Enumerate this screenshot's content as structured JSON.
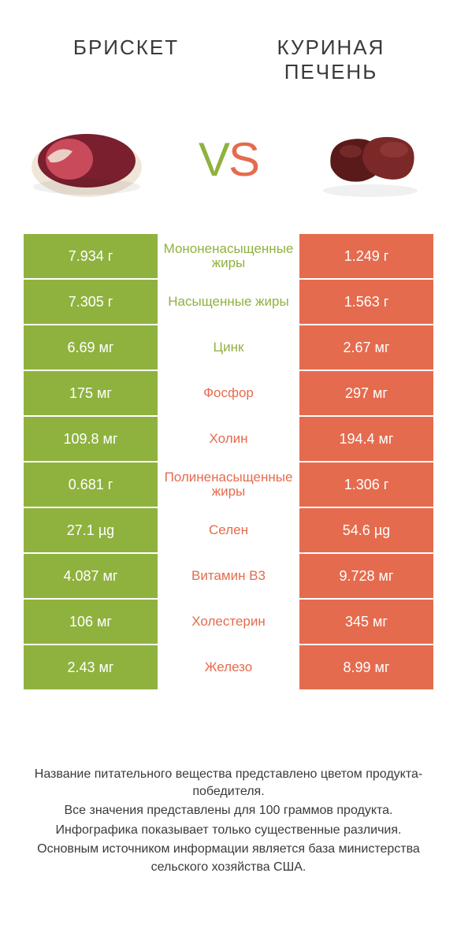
{
  "colors": {
    "green": "#8fb23f",
    "orange": "#e56b4e",
    "text": "#3a3a3a",
    "white": "#ffffff",
    "brisket_dark": "#7a1f2e",
    "brisket_light": "#c94a5a",
    "brisket_fat": "#f0e6d8",
    "liver_dark": "#5a1a1a",
    "liver_mid": "#7a2828",
    "liver_hl": "#9a4040"
  },
  "header": {
    "left": "БРИСКЕТ",
    "right_line1": "КУРИНАЯ",
    "right_line2": "ПЕЧЕНЬ"
  },
  "vs": {
    "v": "V",
    "s": "S"
  },
  "rows": [
    {
      "left": "7.934 г",
      "mid": "Мононенасыщенные жиры",
      "right": "1.249 г",
      "winner": "left"
    },
    {
      "left": "7.305 г",
      "mid": "Насыщенные жиры",
      "right": "1.563 г",
      "winner": "left"
    },
    {
      "left": "6.69 мг",
      "mid": "Цинк",
      "right": "2.67 мг",
      "winner": "left"
    },
    {
      "left": "175 мг",
      "mid": "Фосфор",
      "right": "297 мг",
      "winner": "right"
    },
    {
      "left": "109.8 мг",
      "mid": "Холин",
      "right": "194.4 мг",
      "winner": "right"
    },
    {
      "left": "0.681 г",
      "mid": "Полиненасыщенные жиры",
      "right": "1.306 г",
      "winner": "right"
    },
    {
      "left": "27.1 µg",
      "mid": "Селен",
      "right": "54.6 µg",
      "winner": "right"
    },
    {
      "left": "4.087 мг",
      "mid": "Витамин B3",
      "right": "9.728 мг",
      "winner": "right"
    },
    {
      "left": "106 мг",
      "mid": "Холестерин",
      "right": "345 мг",
      "winner": "right"
    },
    {
      "left": "2.43 мг",
      "mid": "Железо",
      "right": "8.99 мг",
      "winner": "right"
    }
  ],
  "footer": {
    "l1": "Название питательного вещества представлено цветом продукта-победителя.",
    "l2": "Все значения представлены для 100 граммов продукта.",
    "l3": "Инфографика показывает только существенные различия.",
    "l4": "Основным источником информации является база министерства сельского хозяйства США."
  }
}
